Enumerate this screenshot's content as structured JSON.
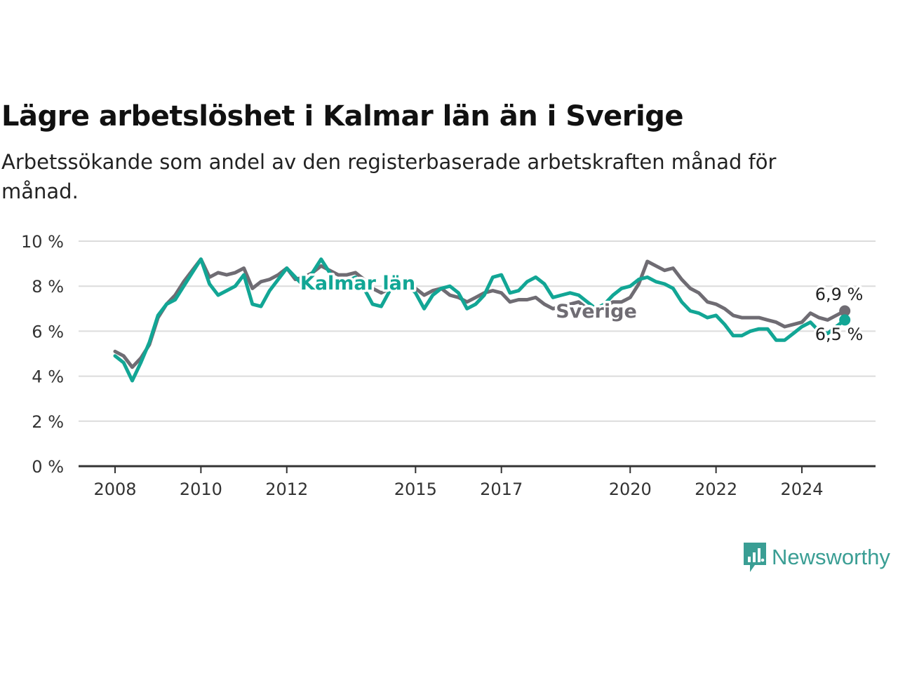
{
  "title": "Lägre arbetslöshet i Kalmar län än i Sverige",
  "subtitle": "Arbetssökande som andel av den registerbaserade arbetskraften månad för månad.",
  "brand": {
    "name": "Newsworthy",
    "icon": "newsworthy-logo-icon",
    "color": "#3a9e94"
  },
  "chart_data": {
    "type": "line",
    "xlabel": "",
    "ylabel": "",
    "ylim": [
      0,
      10
    ],
    "yticks": [
      0,
      2,
      4,
      6,
      8,
      10
    ],
    "ytick_labels": [
      "0 %",
      "2 %",
      "4 %",
      "6 %",
      "8 %",
      "10 %"
    ],
    "xlim": [
      2008,
      2025.5
    ],
    "xticks": [
      2008,
      2010,
      2012,
      2015,
      2017,
      2020,
      2022,
      2024
    ],
    "xtick_labels": [
      "2008",
      "2010",
      "2012",
      "2015",
      "2017",
      "2020",
      "2022",
      "2024"
    ],
    "grid": "horizontal",
    "legend": "inline labels",
    "series": [
      {
        "name": "Sverige",
        "color": "#6f6c73",
        "end_label": "6,9 %",
        "x": [
          2008,
          2008.2,
          2008.4,
          2008.6,
          2008.8,
          2009,
          2009.2,
          2009.4,
          2009.6,
          2009.8,
          2010,
          2010.2,
          2010.4,
          2010.6,
          2010.8,
          2011,
          2011.2,
          2011.4,
          2011.6,
          2011.8,
          2012,
          2012.2,
          2012.4,
          2012.6,
          2012.8,
          2013,
          2013.2,
          2013.4,
          2013.6,
          2013.8,
          2014,
          2014.2,
          2014.4,
          2014.6,
          2014.8,
          2015,
          2015.2,
          2015.4,
          2015.6,
          2015.8,
          2016,
          2016.2,
          2016.4,
          2016.6,
          2016.8,
          2017,
          2017.2,
          2017.4,
          2017.6,
          2017.8,
          2018,
          2018.2,
          2018.4,
          2018.6,
          2018.8,
          2019,
          2019.2,
          2019.4,
          2019.6,
          2019.8,
          2020,
          2020.2,
          2020.4,
          2020.6,
          2020.8,
          2021,
          2021.2,
          2021.4,
          2021.6,
          2021.8,
          2022,
          2022.2,
          2022.4,
          2022.6,
          2022.8,
          2023,
          2023.2,
          2023.4,
          2023.6,
          2023.8,
          2024,
          2024.2,
          2024.4,
          2024.6,
          2024.8,
          2025
        ],
        "values": [
          5.1,
          4.9,
          4.4,
          4.8,
          5.4,
          6.6,
          7.2,
          7.6,
          8.2,
          8.7,
          9.2,
          8.4,
          8.6,
          8.5,
          8.6,
          8.8,
          7.9,
          8.2,
          8.3,
          8.5,
          8.8,
          8.3,
          8.4,
          8.6,
          8.9,
          8.7,
          8.5,
          8.5,
          8.6,
          8.3,
          7.9,
          7.7,
          7.9,
          8.2,
          8.1,
          7.9,
          7.6,
          7.8,
          7.9,
          7.6,
          7.5,
          7.3,
          7.5,
          7.7,
          7.8,
          7.7,
          7.3,
          7.4,
          7.4,
          7.5,
          7.2,
          7.0,
          7.1,
          7.2,
          7.3,
          7.0,
          6.9,
          7.1,
          7.3,
          7.3,
          7.5,
          8.1,
          9.1,
          8.9,
          8.7,
          8.8,
          8.3,
          7.9,
          7.7,
          7.3,
          7.2,
          7.0,
          6.7,
          6.6,
          6.6,
          6.6,
          6.5,
          6.4,
          6.2,
          6.3,
          6.4,
          6.8,
          6.6,
          6.5,
          6.7,
          6.9
        ]
      },
      {
        "name": "Kalmar län",
        "color": "#12a695",
        "end_label": "6,5 %",
        "x": [
          2008,
          2008.2,
          2008.4,
          2008.6,
          2008.8,
          2009,
          2009.2,
          2009.4,
          2009.6,
          2009.8,
          2010,
          2010.2,
          2010.4,
          2010.6,
          2010.8,
          2011,
          2011.2,
          2011.4,
          2011.6,
          2011.8,
          2012,
          2012.2,
          2012.4,
          2012.6,
          2012.8,
          2013,
          2013.2,
          2013.4,
          2013.6,
          2013.8,
          2014,
          2014.2,
          2014.4,
          2014.6,
          2014.8,
          2015,
          2015.2,
          2015.4,
          2015.6,
          2015.8,
          2016,
          2016.2,
          2016.4,
          2016.6,
          2016.8,
          2017,
          2017.2,
          2017.4,
          2017.6,
          2017.8,
          2018,
          2018.2,
          2018.4,
          2018.6,
          2018.8,
          2019,
          2019.2,
          2019.4,
          2019.6,
          2019.8,
          2020,
          2020.2,
          2020.4,
          2020.6,
          2020.8,
          2021,
          2021.2,
          2021.4,
          2021.6,
          2021.8,
          2022,
          2022.2,
          2022.4,
          2022.6,
          2022.8,
          2023,
          2023.2,
          2023.4,
          2023.6,
          2023.8,
          2024,
          2024.2,
          2024.4,
          2024.6,
          2024.8,
          2025
        ],
        "values": [
          4.9,
          4.6,
          3.8,
          4.6,
          5.5,
          6.7,
          7.2,
          7.4,
          8.0,
          8.6,
          9.2,
          8.1,
          7.6,
          7.8,
          8.0,
          8.5,
          7.2,
          7.1,
          7.8,
          8.3,
          8.8,
          8.4,
          8.0,
          8.6,
          9.2,
          8.6,
          8.0,
          8.2,
          8.4,
          7.9,
          7.2,
          7.1,
          7.8,
          8.3,
          8.1,
          7.7,
          7.0,
          7.6,
          7.9,
          8.0,
          7.7,
          7.0,
          7.2,
          7.6,
          8.4,
          8.5,
          7.7,
          7.8,
          8.2,
          8.4,
          8.1,
          7.5,
          7.6,
          7.7,
          7.6,
          7.3,
          7.0,
          7.2,
          7.6,
          7.9,
          8.0,
          8.3,
          8.4,
          8.2,
          8.1,
          7.9,
          7.3,
          6.9,
          6.8,
          6.6,
          6.7,
          6.3,
          5.8,
          5.8,
          6.0,
          6.1,
          6.1,
          5.6,
          5.6,
          5.9,
          6.2,
          6.4,
          6.0,
          5.9,
          6.2,
          6.5
        ]
      }
    ]
  }
}
